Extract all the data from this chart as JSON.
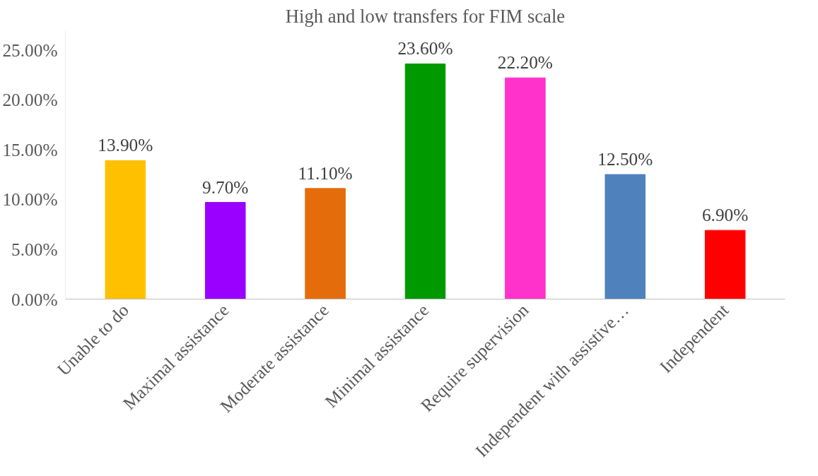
{
  "chart_data": {
    "type": "bar",
    "title": "High and low transfers for FIM scale",
    "categories": [
      "Unable to do",
      "Maximal assistance",
      "Moderate assistance",
      "Minimal assistance",
      "Require supervision",
      "Independent with assistive…",
      "Independent"
    ],
    "values": [
      13.9,
      9.7,
      11.1,
      23.6,
      22.2,
      12.5,
      6.9
    ],
    "colors": [
      "#ffc000",
      "#9900ff",
      "#e46c0a",
      "#009900",
      "#ff33cc",
      "#4f81bd",
      "#ff0000"
    ],
    "value_labels": [
      "13.90%",
      "9.70%",
      "11.10%",
      "23.60%",
      "22.20%",
      "12.50%",
      "6.90%"
    ],
    "ylim": [
      0,
      27
    ],
    "yticks": [
      {
        "value": 0,
        "label": "0.00%"
      },
      {
        "value": 5,
        "label": "5.00%"
      },
      {
        "value": 10,
        "label": "10.00%"
      },
      {
        "value": 15,
        "label": "15.00%"
      },
      {
        "value": 20,
        "label": "20.00%"
      },
      {
        "value": 25,
        "label": "25.00%"
      }
    ],
    "grid": false
  }
}
